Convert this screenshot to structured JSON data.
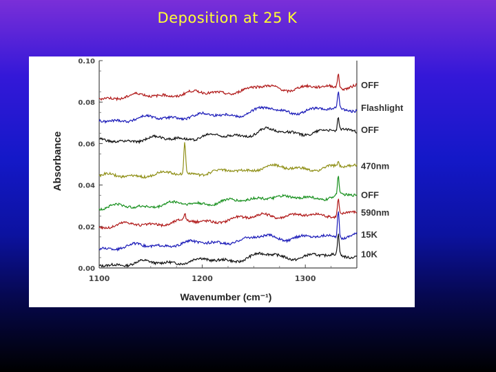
{
  "slide": {
    "title": "Deposition at 25 K"
  },
  "chart_data": {
    "type": "line",
    "title": "",
    "xlabel": "Wavenumber (cm⁻¹)",
    "ylabel": "Absorbance",
    "xlim": [
      1100,
      1350
    ],
    "ylim": [
      0.0,
      0.1
    ],
    "x_ticks": [
      "1100",
      "1200",
      "1300"
    ],
    "x_tick_values": [
      1100,
      1200,
      1300
    ],
    "y_ticks": [
      "0.00",
      "0.02",
      "0.04",
      "0.06",
      "0.08",
      "0.10"
    ],
    "y_tick_values": [
      0.0,
      0.02,
      0.04,
      0.06,
      0.08,
      0.1
    ],
    "grid": false,
    "legend_placement": "right, labels beside each trace",
    "series": [
      {
        "name": "10K",
        "color": "#111111",
        "baseline": 0.0015,
        "endpoint": 0.0065,
        "peaks": [
          {
            "x": 1332,
            "height": 0.01
          }
        ]
      },
      {
        "name": "15K",
        "color": "#1a1ab8",
        "baseline": 0.0095,
        "endpoint": 0.016,
        "peaks": [
          {
            "x": 1332,
            "height": 0.013
          }
        ]
      },
      {
        "name": "590nm",
        "color": "#b01818",
        "baseline": 0.02,
        "endpoint": 0.0265,
        "peaks": [
          {
            "x": 1332,
            "height": 0.008
          },
          {
            "x": 1183,
            "height": 0.003
          }
        ]
      },
      {
        "name": "OFF",
        "color": "#18901e",
        "baseline": 0.029,
        "endpoint": 0.035,
        "peaks": [
          {
            "x": 1332,
            "height": 0.009
          }
        ]
      },
      {
        "name": "470nm",
        "color": "#909018",
        "baseline": 0.044,
        "endpoint": 0.049,
        "peaks": [
          {
            "x": 1183,
            "height": 0.015
          },
          {
            "x": 1332,
            "height": 0.002
          }
        ]
      },
      {
        "name": "OFF",
        "color": "#111111",
        "baseline": 0.061,
        "endpoint": 0.0665,
        "peaks": [
          {
            "x": 1332,
            "height": 0.006
          }
        ]
      },
      {
        "name": "Flashlight",
        "color": "#1a1ab8",
        "baseline": 0.071,
        "endpoint": 0.077,
        "peaks": [
          {
            "x": 1332,
            "height": 0.008
          }
        ]
      },
      {
        "name": "OFF",
        "color": "#b01818",
        "baseline": 0.082,
        "endpoint": 0.088,
        "peaks": [
          {
            "x": 1332,
            "height": 0.007
          }
        ]
      }
    ]
  }
}
